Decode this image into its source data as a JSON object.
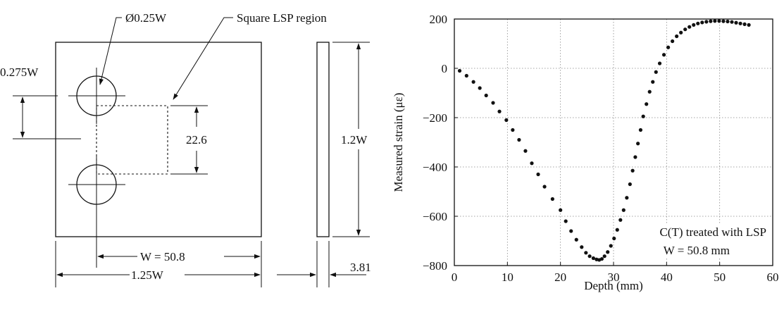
{
  "drawing": {
    "hole_diameter_label": "Ø0.25W",
    "lsp_region_label": "Square LSP region",
    "hole_offset_label": "0.275W",
    "region_height_label": "22.6",
    "width_label": "W = 50.8",
    "overall_width_label": "1.25W",
    "height_label": "1.2W",
    "thickness_label": "3.81"
  },
  "chart_data": {
    "type": "scatter",
    "xlabel": "Depth (mm)",
    "ylabel": "Measured strain (με)",
    "xlim": [
      0,
      60
    ],
    "ylim": [
      -800,
      200
    ],
    "xticks": [
      "0",
      "10",
      "20",
      "30",
      "40",
      "50",
      "60"
    ],
    "yticks": [
      "200",
      "0",
      "−200",
      "−400",
      "−600",
      "−800"
    ],
    "grid": true,
    "annotation_line1": "C(T) treated with LSP",
    "annotation_line2": "W = 50.8 mm",
    "marker_color": "#111111",
    "x": [
      1.0,
      2.3,
      3.6,
      4.8,
      6.0,
      7.3,
      8.5,
      9.8,
      11.0,
      12.2,
      13.4,
      14.6,
      15.8,
      17.0,
      18.5,
      20.0,
      21.0,
      22.0,
      23.0,
      24.0,
      24.8,
      25.5,
      26.2,
      26.8,
      27.3,
      27.8,
      28.3,
      28.9,
      29.5,
      30.1,
      30.7,
      31.3,
      31.9,
      32.5,
      33.1,
      33.6,
      34.1,
      34.6,
      35.1,
      35.6,
      36.2,
      36.8,
      37.4,
      38.0,
      38.7,
      39.5,
      40.3,
      41.1,
      41.9,
      42.7,
      43.5,
      44.3,
      45.1,
      45.9,
      46.7,
      47.5,
      48.3,
      49.1,
      49.9,
      50.7,
      51.5,
      52.3,
      53.1,
      53.9,
      54.7,
      55.5
    ],
    "y": [
      -10,
      -30,
      -55,
      -80,
      -110,
      -140,
      -175,
      -210,
      -250,
      -290,
      -335,
      -385,
      -430,
      -480,
      -530,
      -575,
      -620,
      -660,
      -695,
      -725,
      -748,
      -762,
      -770,
      -775,
      -777,
      -773,
      -762,
      -745,
      -720,
      -690,
      -655,
      -615,
      -575,
      -525,
      -470,
      -415,
      -360,
      -305,
      -250,
      -195,
      -145,
      -95,
      -55,
      -15,
      20,
      55,
      85,
      110,
      130,
      145,
      158,
      168,
      176,
      182,
      186,
      189,
      191,
      192,
      192,
      191,
      190,
      188,
      185,
      182,
      179,
      176
    ]
  }
}
